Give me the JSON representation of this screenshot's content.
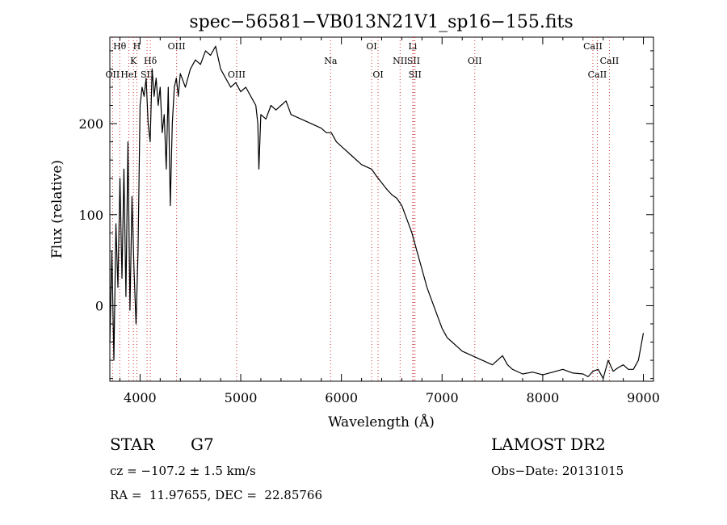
{
  "chart_data": {
    "type": "line",
    "title": "spec−56581−VB013N21V1_sp16−155.fits",
    "xlabel": "Wavelength (Å)",
    "ylabel": "Flux (relative)",
    "xlim": [
      3700,
      9100
    ],
    "ylim": [
      -83,
      295
    ],
    "xticks": [
      4000,
      5000,
      6000,
      7000,
      8000,
      9000
    ],
    "yticks": [
      0,
      100,
      200
    ],
    "grid": false,
    "line_color": "#000000",
    "marker_color": "#cc3333",
    "series": [
      {
        "x": [
          3700,
          3720,
          3740,
          3760,
          3780,
          3800,
          3820,
          3840,
          3860,
          3880,
          3900,
          3920,
          3940,
          3960,
          3980,
          4000,
          4020,
          4040,
          4060,
          4080,
          4100,
          4120,
          4140,
          4160,
          4180,
          4200,
          4220,
          4240,
          4260,
          4280,
          4300,
          4320,
          4340,
          4360,
          4380,
          4400,
          4450,
          4500,
          4550,
          4600,
          4650,
          4700,
          4750,
          4800,
          4850,
          4900,
          4950,
          5000,
          5050,
          5100,
          5150,
          5170,
          5180,
          5200,
          5250,
          5300,
          5350,
          5400,
          5450,
          5500,
          5600,
          5700,
          5800,
          5850,
          5900,
          5950,
          6000,
          6100,
          6200,
          6300,
          6350,
          6400,
          6450,
          6500,
          6550,
          6600,
          6650,
          6700,
          6750,
          6800,
          6850,
          6900,
          6950,
          7000,
          7050,
          7100,
          7150,
          7200,
          7300,
          7400,
          7500,
          7550,
          7600,
          7650,
          7700,
          7800,
          7900,
          8000,
          8100,
          8200,
          8300,
          8400,
          8450,
          8500,
          8550,
          8600,
          8650,
          8700,
          8750,
          8800,
          8850,
          8900,
          8950,
          9000
        ],
        "y": [
          -40,
          60,
          -60,
          90,
          20,
          140,
          30,
          150,
          10,
          180,
          -5,
          120,
          40,
          -20,
          60,
          220,
          240,
          230,
          250,
          200,
          180,
          260,
          230,
          250,
          220,
          240,
          190,
          210,
          150,
          240,
          110,
          200,
          240,
          250,
          230,
          255,
          240,
          260,
          270,
          265,
          280,
          275,
          285,
          260,
          250,
          240,
          245,
          235,
          240,
          230,
          220,
          200,
          150,
          210,
          205,
          220,
          215,
          220,
          225,
          210,
          205,
          200,
          195,
          190,
          190,
          180,
          175,
          165,
          155,
          150,
          142,
          135,
          128,
          122,
          118,
          110,
          95,
          80,
          60,
          40,
          20,
          5,
          -10,
          -25,
          -35,
          -40,
          -45,
          -50,
          -55,
          -60,
          -65,
          -60,
          -55,
          -65,
          -70,
          -75,
          -73,
          -76,
          -73,
          -70,
          -74,
          -75,
          -78,
          -72,
          -70,
          -80,
          -60,
          -72,
          -68,
          -65,
          -70,
          -70,
          -60,
          -30
        ]
      }
    ],
    "lines": [
      {
        "label": "Hθ",
        "x": 3798,
        "row": 0
      },
      {
        "label": "OII",
        "x": 3727,
        "row": 2
      },
      {
        "label": "H",
        "x": 3968,
        "row": 0
      },
      {
        "label": "K",
        "x": 3934,
        "row": 1
      },
      {
        "label": "HeI",
        "x": 3889,
        "row": 2
      },
      {
        "label": "Hδ",
        "x": 4102,
        "row": 1
      },
      {
        "label": "SII",
        "x": 4070,
        "row": 2
      },
      {
        "label": "OIII",
        "x": 4363,
        "row": 0
      },
      {
        "label": "OIII",
        "x": 4959,
        "row": 2
      },
      {
        "label": "Na",
        "x": 5893,
        "row": 1
      },
      {
        "label": "OI",
        "x": 6300,
        "row": 0
      },
      {
        "label": "OI",
        "x": 6364,
        "row": 2
      },
      {
        "label": "Li",
        "x": 6708,
        "row": 0
      },
      {
        "label": "NII",
        "x": 6583,
        "row": 1
      },
      {
        "label": "SII",
        "x": 6717,
        "row": 1
      },
      {
        "label": "SII",
        "x": 6731,
        "row": 2
      },
      {
        "label": "OII",
        "x": 7325,
        "row": 1
      },
      {
        "label": "CaII",
        "x": 8498,
        "row": 0
      },
      {
        "label": "CaII",
        "x": 8662,
        "row": 1
      },
      {
        "label": "CaII",
        "x": 8542,
        "row": 2
      }
    ]
  },
  "info": {
    "class": "STAR",
    "subclass": "G7",
    "survey": "LAMOST DR2",
    "cz": "cz = −107.2 ± 1.5 km/s",
    "obs_date": "Obs−Date: 20131015",
    "radec": "RA =  11.97655, DEC =  22.85766"
  }
}
